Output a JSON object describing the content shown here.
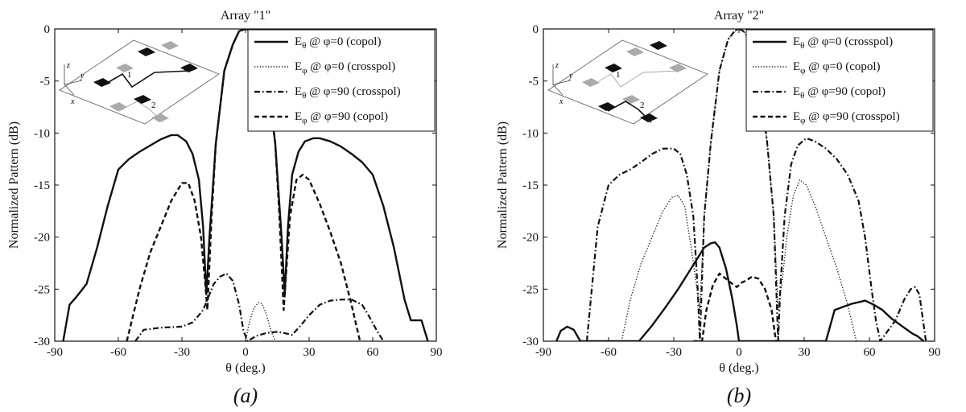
{
  "chart_data": [
    {
      "type": "line",
      "title": "Array \"1\"",
      "panel_label": "(a)",
      "xlabel": "θ (deg.)",
      "ylabel": "Normalized Pattern (dB)",
      "xlim": [
        -90,
        90
      ],
      "ylim": [
        -30,
        0
      ],
      "xticks": [
        "-90",
        "-60",
        "-30",
        "0",
        "30",
        "60",
        "90"
      ],
      "yticks": [
        "0",
        "-5",
        "-10",
        "-15",
        "-20",
        "-25",
        "-30"
      ],
      "legend_position": "top-right",
      "inset": {
        "axis_labels": [
          "z",
          "y",
          "x"
        ],
        "array_labels": [
          "1",
          "2"
        ],
        "highlight_array": "1"
      },
      "series": [
        {
          "name": "E_θ @ φ=0 (copol)",
          "field": "E",
          "sub": "θ",
          "angle": "0",
          "pol": "copol",
          "style": "solid",
          "x": [
            -86,
            -83,
            -80,
            -75,
            -70,
            -65,
            -60,
            -55,
            -50,
            -45,
            -40,
            -35,
            -32,
            -28,
            -25,
            -22,
            -20,
            -18.5,
            -17,
            -14,
            -10,
            -6,
            -3,
            0,
            3,
            6,
            10,
            14,
            17,
            18.5,
            20,
            22,
            25,
            28,
            32,
            35,
            40,
            45,
            50,
            55,
            60,
            65,
            70,
            75,
            78,
            80,
            83,
            86
          ],
          "y": [
            -30,
            -26.5,
            -25.8,
            -24.5,
            -21,
            -17,
            -13.5,
            -12.5,
            -11.8,
            -11.2,
            -10.6,
            -10.2,
            -10.2,
            -10.8,
            -12,
            -14.5,
            -19,
            -25.5,
            -20,
            -11,
            -4,
            -1.5,
            -0.2,
            0,
            -0.2,
            -1.5,
            -4,
            -11,
            -20,
            -25.5,
            -19,
            -14,
            -11.8,
            -10.8,
            -10.5,
            -10.5,
            -10.8,
            -11.3,
            -12,
            -12.8,
            -14,
            -17,
            -21,
            -26,
            -28,
            -28,
            -28,
            -30
          ]
        },
        {
          "name": "E_φ @ φ=0 (crosspol)",
          "field": "E",
          "sub": "φ",
          "angle": "0",
          "pol": "crosspol",
          "style": "dotted",
          "x": [
            0,
            2,
            4,
            6,
            7,
            8,
            10,
            12,
            14
          ],
          "y": [
            -30,
            -28,
            -26.8,
            -26.3,
            -26.3,
            -26.5,
            -27.5,
            -29,
            -30
          ]
        },
        {
          "name": "E_θ @ φ=90 (crosspol)",
          "field": "E",
          "sub": "θ",
          "angle": "90",
          "pol": "crosspol",
          "style": "dashdot",
          "x": [
            -52,
            -48,
            -40,
            -30,
            -25,
            -22,
            -20,
            -18,
            -15,
            -12,
            -9,
            -6,
            -3,
            -1,
            1,
            5,
            10,
            15,
            18,
            22,
            26,
            30,
            35,
            40,
            45,
            50,
            55,
            58,
            62,
            65
          ],
          "y": [
            -30,
            -28.9,
            -28.7,
            -28.6,
            -28.2,
            -27.5,
            -27,
            -26,
            -24.5,
            -23.8,
            -23.5,
            -24.2,
            -26.5,
            -29,
            -30,
            -29.5,
            -29.2,
            -29.1,
            -29.2,
            -29.4,
            -28.5,
            -27.5,
            -26.5,
            -26.1,
            -26,
            -26,
            -26.5,
            -27.5,
            -29,
            -30
          ]
        },
        {
          "name": "E_φ @ φ=90 (copol)",
          "field": "E",
          "sub": "φ",
          "angle": "90",
          "pol": "copol",
          "style": "dashed",
          "x": [
            -56,
            -50,
            -45,
            -40,
            -35,
            -30,
            -27,
            -24,
            -21,
            -19,
            -18,
            -16,
            -14,
            -10,
            -6,
            -3,
            0,
            3,
            6,
            10,
            14,
            16,
            18,
            19,
            21,
            24,
            27,
            30,
            35,
            40,
            45,
            50,
            54
          ],
          "y": [
            -30,
            -25,
            -21.5,
            -19,
            -16.5,
            -14.8,
            -14.8,
            -16.5,
            -20,
            -24.5,
            -27,
            -18,
            -11,
            -4,
            -1.5,
            -0.2,
            0,
            -0.2,
            -1.5,
            -4,
            -11,
            -18,
            -27,
            -24,
            -18,
            -14.5,
            -14,
            -14.5,
            -16.8,
            -19.5,
            -22.5,
            -26.5,
            -30
          ]
        }
      ]
    },
    {
      "type": "line",
      "title": "Array \"2\"",
      "panel_label": "(b)",
      "xlabel": "θ (deg.)",
      "ylabel": "Normalized Pattern (dB)",
      "xlim": [
        -90,
        90
      ],
      "ylim": [
        -30,
        0
      ],
      "xticks": [
        "-90",
        "-60",
        "-30",
        "0",
        "30",
        "60",
        "90"
      ],
      "yticks": [
        "0",
        "-5",
        "-10",
        "-15",
        "-20",
        "-25",
        "-30"
      ],
      "legend_position": "top-right",
      "inset": {
        "axis_labels": [
          "z",
          "y",
          "x"
        ],
        "array_labels": [
          "1",
          "2"
        ],
        "highlight_array": "2"
      },
      "series": [
        {
          "name": "E_θ @ φ=0 (crosspol)",
          "field": "E",
          "sub": "θ",
          "angle": "0",
          "pol": "crosspol",
          "style": "solid",
          "x": [
            -84,
            -82,
            -79,
            -76,
            -73,
            -46,
            -40,
            -34,
            -28,
            -22,
            -16,
            -13,
            -11,
            -9,
            -6,
            -3,
            -1,
            0,
            40,
            44,
            48,
            52,
            56,
            58,
            62,
            66,
            70,
            74,
            78,
            80,
            82,
            85
          ],
          "y": [
            -30,
            -29,
            -28.6,
            -28.9,
            -30,
            -30,
            -28.5,
            -26.8,
            -25,
            -23,
            -21,
            -20.6,
            -20.5,
            -21,
            -23,
            -26,
            -28.5,
            -30,
            -30,
            -27,
            -26.7,
            -26.4,
            -26.2,
            -26.1,
            -26.5,
            -27,
            -27.8,
            -28.4,
            -29,
            -29.3,
            -29.5,
            -30
          ]
        },
        {
          "name": "E_φ @ φ=0 (copol)",
          "field": "E",
          "sub": "φ",
          "angle": "0",
          "pol": "copol",
          "style": "dotted",
          "x": [
            -54,
            -50,
            -45,
            -40,
            -35,
            -31,
            -28,
            -25,
            -22,
            -20,
            -18,
            -16,
            -13,
            -9,
            -5,
            -2,
            0,
            2,
            5,
            9,
            13,
            16,
            18,
            20,
            22,
            25,
            28,
            31,
            35,
            40,
            45,
            50,
            54
          ],
          "y": [
            -30,
            -26,
            -22.5,
            -20,
            -17.5,
            -16.2,
            -16,
            -17,
            -21,
            -24,
            -27,
            -18,
            -11,
            -4,
            -1,
            -0.2,
            0,
            -0.2,
            -1,
            -4,
            -11,
            -18,
            -27,
            -24,
            -20,
            -16,
            -14.5,
            -15,
            -17,
            -20,
            -23,
            -26.5,
            -30
          ]
        },
        {
          "name": "E_θ @ φ=90 (copol)",
          "field": "E",
          "sub": "θ",
          "angle": "90",
          "pol": "copol",
          "style": "dashdot",
          "x": [
            -70,
            -65,
            -60,
            -55,
            -50,
            -45,
            -40,
            -35,
            -30,
            -27,
            -24,
            -21,
            -19,
            -18,
            -16,
            -13,
            -9,
            -5,
            -2,
            0,
            2,
            5,
            9,
            13,
            16,
            18,
            19,
            21,
            24,
            27,
            31,
            35,
            40,
            45,
            50,
            55,
            58,
            61,
            63,
            65,
            72,
            76,
            79,
            81,
            83,
            86
          ],
          "y": [
            -30,
            -19,
            -15,
            -14,
            -13.5,
            -12.8,
            -12,
            -11.5,
            -11.5,
            -12,
            -14,
            -18,
            -25,
            -30,
            -18,
            -11,
            -4,
            -1,
            -0.2,
            0,
            -0.2,
            -1,
            -4,
            -11,
            -18,
            -30,
            -25,
            -18,
            -13,
            -11.2,
            -10.5,
            -10.8,
            -11.5,
            -12.5,
            -14,
            -16.5,
            -20,
            -25,
            -28,
            -30,
            -28,
            -26,
            -25,
            -24.8,
            -25.5,
            -30
          ]
        },
        {
          "name": "E_φ @ φ=90 (crosspol)",
          "field": "E",
          "sub": "φ",
          "angle": "90",
          "pol": "crosspol",
          "style": "dashed",
          "x": [
            -21,
            -19,
            -17,
            -15,
            -12,
            -9,
            -6,
            -3,
            -1,
            0,
            1,
            3,
            6,
            9,
            12,
            15,
            17,
            19,
            21
          ],
          "y": [
            -30,
            -30,
            -30,
            -27,
            -24.6,
            -23.5,
            -24,
            -24.5,
            -24.8,
            -24.6,
            -24.4,
            -24.2,
            -23.8,
            -24,
            -25,
            -27,
            -30,
            -30,
            -30
          ]
        }
      ]
    }
  ]
}
